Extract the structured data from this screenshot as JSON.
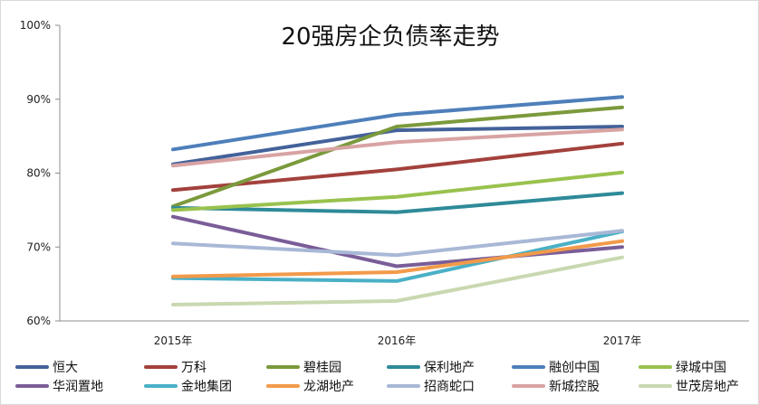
{
  "chart_data": {
    "type": "line",
    "title": "20强房企负债率走势",
    "xlabel": "",
    "ylabel": "",
    "categories": [
      "2015年",
      "2016年",
      "2017年"
    ],
    "ylim": [
      60,
      100
    ],
    "yticks": [
      60,
      70,
      80,
      90,
      100
    ],
    "ytick_labels": [
      "60%",
      "70%",
      "80%",
      "90%",
      "100%"
    ],
    "grid": false,
    "legend_position": "bottom",
    "series": [
      {
        "name": "恒大",
        "color": "#44629a",
        "values": [
          81.2,
          85.8,
          86.3
        ]
      },
      {
        "name": "万科",
        "color": "#a3413d",
        "values": [
          77.7,
          80.5,
          84.0
        ]
      },
      {
        "name": "碧桂园",
        "color": "#7b9a3c",
        "values": [
          75.5,
          86.3,
          88.9
        ]
      },
      {
        "name": "保利地产",
        "color": "#2e8a99",
        "values": [
          75.3,
          74.7,
          77.3
        ]
      },
      {
        "name": "融创中国",
        "color": "#4e7fba",
        "values": [
          83.2,
          87.9,
          90.3
        ]
      },
      {
        "name": "绿城中国",
        "color": "#99c24e",
        "values": [
          75.0,
          76.8,
          80.1
        ]
      },
      {
        "name": "华润置地",
        "color": "#7a5d98",
        "values": [
          74.1,
          67.4,
          70.0
        ]
      },
      {
        "name": "金地集团",
        "color": "#4ab0c6",
        "values": [
          65.8,
          65.4,
          72.1
        ]
      },
      {
        "name": "龙湖地产",
        "color": "#f29a4a",
        "values": [
          66.0,
          66.6,
          70.8
        ]
      },
      {
        "name": "招商蛇口",
        "color": "#a8b8d6",
        "values": [
          70.5,
          68.9,
          72.2
        ]
      },
      {
        "name": "新城控股",
        "color": "#d8a3a3",
        "values": [
          81.0,
          84.2,
          85.9
        ]
      },
      {
        "name": "世茂房地产",
        "color": "#c9d8b0",
        "values": [
          62.2,
          62.7,
          68.6
        ]
      }
    ]
  }
}
